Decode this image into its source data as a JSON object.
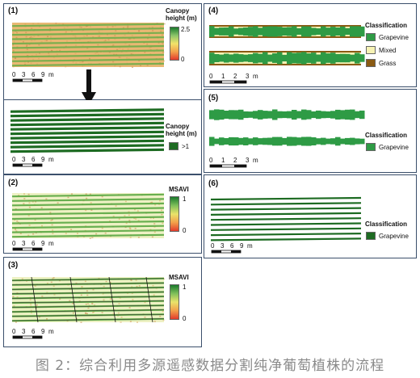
{
  "panels": {
    "p1": {
      "label": "(1)",
      "legend_title": "Canopy\nheight (m)",
      "max": "2.5",
      "min": "0"
    },
    "p1b": {
      "legend_title": "Canopy\nheight (m)",
      "item": ">1"
    },
    "p2": {
      "label": "(2)",
      "legend_title": "MSAVI",
      "max": "1",
      "min": "0"
    },
    "p3": {
      "label": "(3)",
      "legend_title": "MSAVI",
      "max": "1",
      "min": "0"
    },
    "p4": {
      "label": "(4)",
      "legend_title": "Classification",
      "items": [
        "Grapevine",
        "Mixed",
        "Grass"
      ]
    },
    "p5": {
      "label": "(5)",
      "legend_title": "Classification",
      "items": [
        "Grapevine"
      ]
    },
    "p6": {
      "label": "(6)",
      "legend_title": "Classification",
      "items": [
        "Grapevine"
      ]
    }
  },
  "scalebar_large": {
    "ticks": [
      "0",
      "3",
      "6",
      "9"
    ],
    "unit": "m"
  },
  "scalebar_small": {
    "ticks": [
      "0",
      "1",
      "2",
      "3"
    ],
    "unit": "m"
  },
  "colors": {
    "grapevine": "#2e9b45",
    "mixed": "#f7f3b5",
    "grass": "#8a5a12",
    "dark_vine": "#1d6b22"
  },
  "caption": "图 2：综合利用多源遥感数据分割纯净葡萄植株的流程"
}
